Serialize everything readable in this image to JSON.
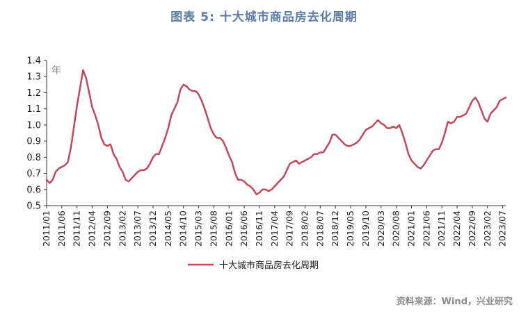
{
  "header": {
    "title": "图表 5:  十大城市商品房去化周期"
  },
  "footer": {
    "source": "资料来源：Wind，兴业研究"
  },
  "chart_data": {
    "type": "line",
    "title": "图表 5:  十大城市商品房去化周期",
    "unit_label": "年",
    "ylim": [
      0.5,
      1.4
    ],
    "yticks": [
      "1.4",
      "1.3",
      "1.2",
      "1.1",
      "1.0",
      "0.9",
      "0.8",
      "0.7",
      "0.6",
      "0.5"
    ],
    "ytick_values": [
      1.4,
      1.3,
      1.2,
      1.1,
      1.0,
      0.9,
      0.8,
      0.7,
      0.6,
      0.5
    ],
    "xtick_labels": [
      "2011/01",
      "2011/06",
      "2011/11",
      "2012/04",
      "2012/09",
      "2013/02",
      "2013/07",
      "2013/12",
      "2014/05",
      "2014/10",
      "2015/03",
      "2015/08",
      "2016/01",
      "2016/06",
      "2016/11",
      "2017/04",
      "2017/09",
      "2018/02",
      "2018/07",
      "2018/12",
      "2019/05",
      "2019/10",
      "2020/03",
      "2020/08",
      "2021/01",
      "2021/06",
      "2021/11",
      "2022/04",
      "2022/09",
      "2023/02",
      "2023/07"
    ],
    "x_start": "2011/01",
    "grid": false,
    "legend_position": "bottom",
    "series": [
      {
        "name": "十大城市商品房去化周期",
        "color": "#c0495a",
        "values": [
          0.66,
          0.64,
          0.66,
          0.71,
          0.73,
          0.74,
          0.75,
          0.77,
          0.86,
          0.99,
          1.12,
          1.23,
          1.34,
          1.29,
          1.2,
          1.11,
          1.06,
          1.0,
          0.92,
          0.88,
          0.87,
          0.88,
          0.82,
          0.79,
          0.74,
          0.71,
          0.66,
          0.65,
          0.67,
          0.69,
          0.71,
          0.72,
          0.72,
          0.73,
          0.76,
          0.8,
          0.82,
          0.82,
          0.87,
          0.92,
          0.98,
          1.06,
          1.1,
          1.14,
          1.22,
          1.25,
          1.24,
          1.22,
          1.21,
          1.21,
          1.19,
          1.15,
          1.1,
          1.04,
          0.98,
          0.94,
          0.92,
          0.92,
          0.9,
          0.86,
          0.81,
          0.77,
          0.7,
          0.66,
          0.66,
          0.65,
          0.63,
          0.62,
          0.6,
          0.57,
          0.58,
          0.6,
          0.6,
          0.59,
          0.6,
          0.62,
          0.64,
          0.66,
          0.68,
          0.72,
          0.76,
          0.77,
          0.78,
          0.76,
          0.77,
          0.78,
          0.79,
          0.8,
          0.82,
          0.82,
          0.83,
          0.83,
          0.86,
          0.89,
          0.94,
          0.94,
          0.92,
          0.9,
          0.88,
          0.87,
          0.87,
          0.88,
          0.89,
          0.91,
          0.94,
          0.97,
          0.98,
          0.99,
          1.01,
          1.03,
          1.01,
          1.0,
          0.98,
          0.98,
          0.99,
          0.98,
          1.0,
          0.95,
          0.89,
          0.82,
          0.78,
          0.76,
          0.74,
          0.73,
          0.75,
          0.78,
          0.81,
          0.84,
          0.85,
          0.85,
          0.89,
          0.95,
          1.02,
          1.01,
          1.02,
          1.05,
          1.05,
          1.06,
          1.07,
          1.11,
          1.15,
          1.17,
          1.14,
          1.09,
          1.04,
          1.02,
          1.07,
          1.09,
          1.11,
          1.15,
          1.16,
          1.17
        ]
      }
    ]
  }
}
